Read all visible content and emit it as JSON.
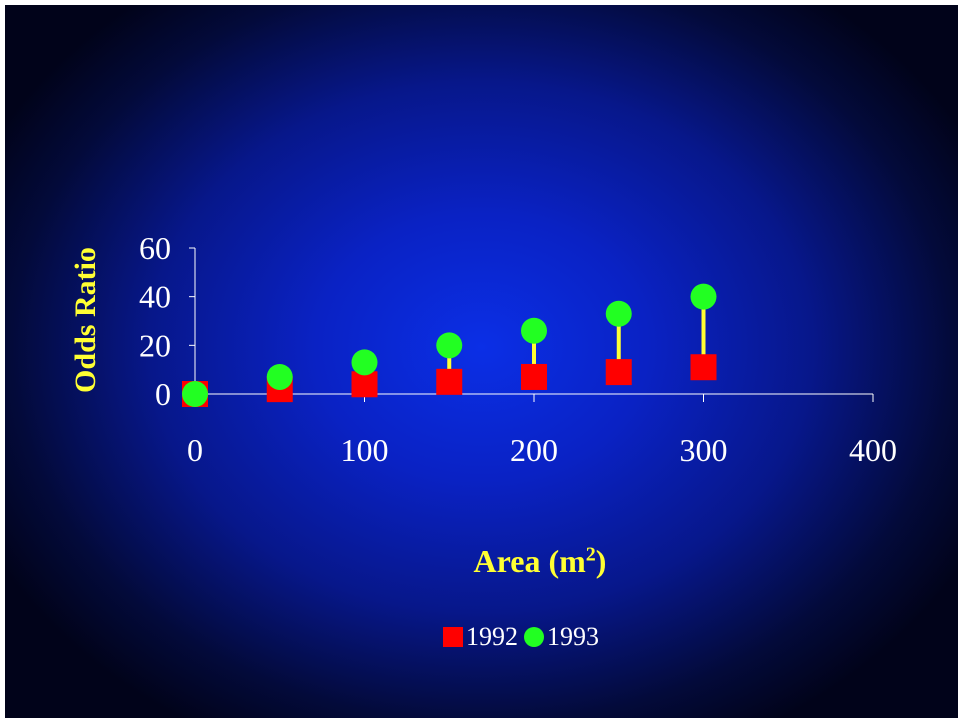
{
  "chart_data": {
    "type": "scatter",
    "xlabel": "Area (m",
    "xlabel_sup": "2",
    "xlabel_end": ")",
    "ylabel": "Odds Ratio",
    "xlim": [
      0,
      400
    ],
    "ylim": [
      0,
      60
    ],
    "xticks": [
      "0",
      "100",
      "200",
      "300",
      "400"
    ],
    "yticks": [
      "0",
      "20",
      "40",
      "60"
    ],
    "grid": false,
    "legend_position": "bottom",
    "series": [
      {
        "name": "1992",
        "marker": "square",
        "color": "#ff0000",
        "x": [
          0,
          50,
          100,
          150,
          200,
          250,
          300
        ],
        "y": [
          0,
          2,
          4,
          5,
          7,
          9,
          11
        ]
      },
      {
        "name": "1993",
        "marker": "circle",
        "color": "#22ff22",
        "x": [
          0,
          50,
          100,
          150,
          200,
          250,
          300
        ],
        "y": [
          0,
          7,
          13,
          20,
          26,
          33,
          40
        ]
      }
    ],
    "error_bar_color": "#ffff33",
    "axis_color": "#ffffff",
    "title_color": "#ffff33"
  }
}
